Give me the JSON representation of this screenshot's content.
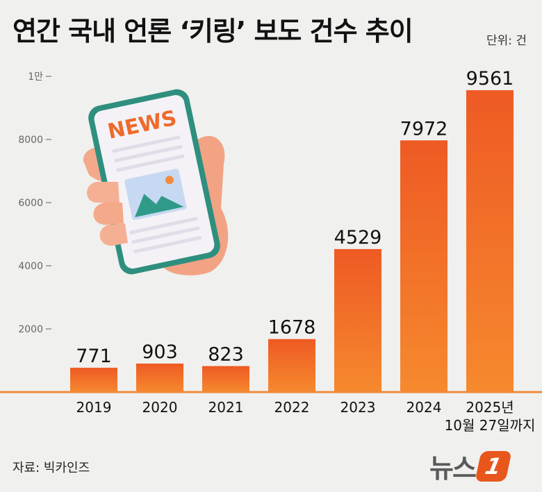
{
  "title": "연간 국내 언론 ‘키링’ 보도 건수 추이",
  "unit_label": "단위: 건",
  "source": "자료: 빅카인즈",
  "logo": {
    "text": "뉴스",
    "badge": "1"
  },
  "illustration": {
    "text": "NEWS"
  },
  "colors": {
    "bar_top": "#ee5a24",
    "bar_bottom": "#f6892e",
    "baseline": "#f08a3a",
    "logo_badge": "#e8561c"
  },
  "chart_data": {
    "type": "bar",
    "title": "연간 국내 언론 ‘키링’ 보도 건수 추이",
    "categories": [
      "2019",
      "2020",
      "2021",
      "2022",
      "2023",
      "2024",
      "2025년\n10월 27일까지"
    ],
    "values": [
      771,
      903,
      823,
      1678,
      4529,
      7972,
      9561
    ],
    "yticks": [
      {
        "value": 2000,
        "label": "2000"
      },
      {
        "value": 4000,
        "label": "4000"
      },
      {
        "value": 6000,
        "label": "6000"
      },
      {
        "value": 8000,
        "label": "8000"
      },
      {
        "value": 10000,
        "label": "1만"
      }
    ],
    "ylim": [
      0,
      10000
    ],
    "unit": "건",
    "grid": false,
    "legend": "none"
  }
}
